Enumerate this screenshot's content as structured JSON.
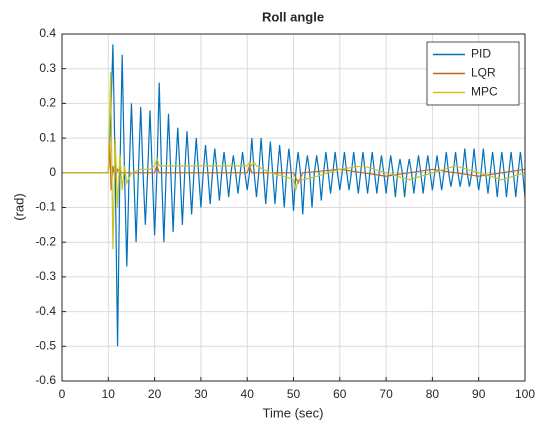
{
  "chart_data": {
    "type": "line",
    "title": "Roll angle",
    "x_label": "Time (sec)",
    "y_label": "(rad)",
    "xlim": [
      0,
      100
    ],
    "xticks": [
      0,
      10,
      20,
      30,
      40,
      50,
      60,
      70,
      80,
      90,
      100
    ],
    "ylim": [
      -0.6,
      0.4
    ],
    "yticks": [
      0.4,
      0.3,
      0.2,
      0.1,
      0,
      -0.1,
      -0.2,
      -0.3,
      -0.4,
      -0.5,
      -0.6
    ],
    "grid": true,
    "legend": "upper-right",
    "series": [
      {
        "name": "PID",
        "color": "#0072bd",
        "x": [
          0,
          10,
          10.5,
          11,
          11.5,
          12,
          12.5,
          13,
          13.5,
          14,
          14.5,
          15,
          15.5,
          16,
          16.5,
          17,
          17.5,
          18,
          18.5,
          19,
          19.5,
          20,
          20.5,
          21,
          21.5,
          22,
          22.5,
          23,
          23.5,
          24,
          24.5,
          25,
          25.5,
          26,
          26.5,
          27,
          27.5,
          28,
          28.5,
          29,
          29.5,
          30,
          30.5,
          31,
          31.5,
          32,
          32.5,
          33,
          33.5,
          34,
          34.5,
          35,
          35.5,
          36,
          36.5,
          37,
          37.5,
          38,
          38.5,
          39,
          39.5,
          40,
          40.5,
          41,
          41.5,
          42,
          42.5,
          43,
          43.5,
          44,
          44.5,
          45,
          45.5,
          46,
          46.5,
          47,
          47.5,
          48,
          48.5,
          49,
          49.5,
          50,
          50.5,
          51,
          51.5,
          52,
          52.5,
          53,
          53.5,
          54,
          54.5,
          55,
          55.5,
          56,
          56.5,
          57,
          57.5,
          58,
          58.5,
          59,
          59.5,
          60,
          60.5,
          61,
          61.5,
          62,
          62.5,
          63,
          63.5,
          64,
          64.5,
          65,
          65.5,
          66,
          66.5,
          67,
          67.5,
          68,
          68.5,
          69,
          69.5,
          70,
          70.5,
          71,
          71.5,
          72,
          72.5,
          73,
          73.5,
          74,
          74.5,
          75,
          75.5,
          76,
          76.5,
          77,
          77.5,
          78,
          78.5,
          79,
          79.5,
          80,
          80.5,
          81,
          81.5,
          82,
          82.5,
          83,
          83.5,
          84,
          84.5,
          85,
          85.5,
          86,
          86.5,
          87,
          87.5,
          88,
          88.5,
          89,
          89.5,
          90,
          90.5,
          91,
          91.5,
          92,
          92.5,
          93,
          93.5,
          94,
          94.5,
          95,
          95.5,
          96,
          96.5,
          97,
          97.5,
          98,
          98.5,
          99,
          99.5,
          100
        ],
        "values": [
          0,
          0,
          0.15,
          0.37,
          0,
          -0.5,
          0,
          0.34,
          0,
          -0.27,
          0,
          0.2,
          0,
          -0.2,
          0,
          0.19,
          0,
          -0.15,
          0,
          0.18,
          0,
          -0.18,
          0,
          0.26,
          0,
          -0.2,
          0,
          0.17,
          0,
          -0.17,
          0,
          0.13,
          0,
          -0.15,
          0,
          0.12,
          0,
          -0.12,
          0,
          0.1,
          0,
          -0.1,
          0,
          0.08,
          0,
          -0.09,
          0,
          0.07,
          0,
          -0.08,
          0,
          0.06,
          0,
          -0.07,
          0,
          0.05,
          0,
          -0.06,
          0,
          0.06,
          0,
          -0.05,
          0,
          0.1,
          0,
          -0.07,
          0,
          0.1,
          0,
          -0.09,
          0,
          0.09,
          0,
          -0.09,
          0,
          0.08,
          0,
          -0.1,
          0,
          0.07,
          0,
          -0.11,
          0,
          0.06,
          0,
          -0.12,
          0,
          0.05,
          0,
          -0.1,
          0,
          0.05,
          0,
          -0.08,
          0,
          0.06,
          0,
          -0.06,
          0,
          0.06,
          0,
          -0.05,
          0,
          0.06,
          0,
          -0.05,
          0,
          0.06,
          0,
          -0.06,
          0,
          0.06,
          0,
          -0.06,
          0,
          0.06,
          0,
          -0.06,
          0,
          0.05,
          0,
          -0.06,
          0,
          0.05,
          0,
          -0.07,
          0,
          0.04,
          0,
          -0.07,
          0,
          0.04,
          0,
          -0.06,
          0,
          0.05,
          0,
          -0.06,
          0,
          0.05,
          0,
          -0.05,
          0,
          0.05,
          0,
          -0.05,
          0,
          0.06,
          0,
          -0.04,
          0,
          0.06,
          0,
          -0.04,
          0,
          0.07,
          0,
          -0.04,
          0,
          0.07,
          0,
          -0.05,
          0,
          0.07,
          0,
          -0.06,
          0,
          0.06,
          0,
          -0.07,
          0,
          0.06,
          0,
          -0.07,
          0,
          0.06,
          0,
          -0.07,
          0,
          0.06,
          0,
          -0.07
        ]
      },
      {
        "name": "LQR",
        "color": "#c8641a",
        "x": [
          0,
          10,
          10.3,
          10.6,
          11,
          11.5,
          12,
          13,
          20,
          20.5,
          21,
          40,
          40.5,
          41,
          50,
          51,
          52,
          60,
          70,
          80,
          90,
          100
        ],
        "values": [
          0,
          0,
          0.09,
          -0.05,
          0.02,
          -0.02,
          0.01,
          0,
          0,
          0.02,
          0,
          0,
          0.02,
          0,
          0,
          -0.03,
          0,
          0.01,
          -0.01,
          0.01,
          -0.01,
          0.01
        ]
      },
      {
        "name": "MPC",
        "color": "#c9c41f",
        "x": [
          0,
          10,
          10.5,
          11,
          11.5,
          12,
          12.5,
          13,
          13.5,
          14,
          15,
          17,
          19,
          20,
          20.5,
          21,
          25,
          30,
          35,
          40,
          40.5,
          41,
          41.5,
          42,
          45,
          48,
          50,
          50.5,
          51,
          52,
          55,
          60,
          65,
          70,
          75,
          80,
          85,
          90,
          95,
          100
        ],
        "values": [
          0,
          0,
          0.29,
          -0.22,
          0.1,
          -0.1,
          0.05,
          -0.05,
          0.02,
          -0.03,
          0,
          0.01,
          0.01,
          0.02,
          0.04,
          0.02,
          0.02,
          0.02,
          0.02,
          0.02,
          0.03,
          0.02,
          0.03,
          0.02,
          0,
          -0.01,
          -0.02,
          -0.05,
          -0.02,
          -0.02,
          -0.01,
          0.01,
          0.02,
          0,
          -0.02,
          0,
          0.02,
          0,
          -0.02,
          0
        ]
      }
    ]
  }
}
